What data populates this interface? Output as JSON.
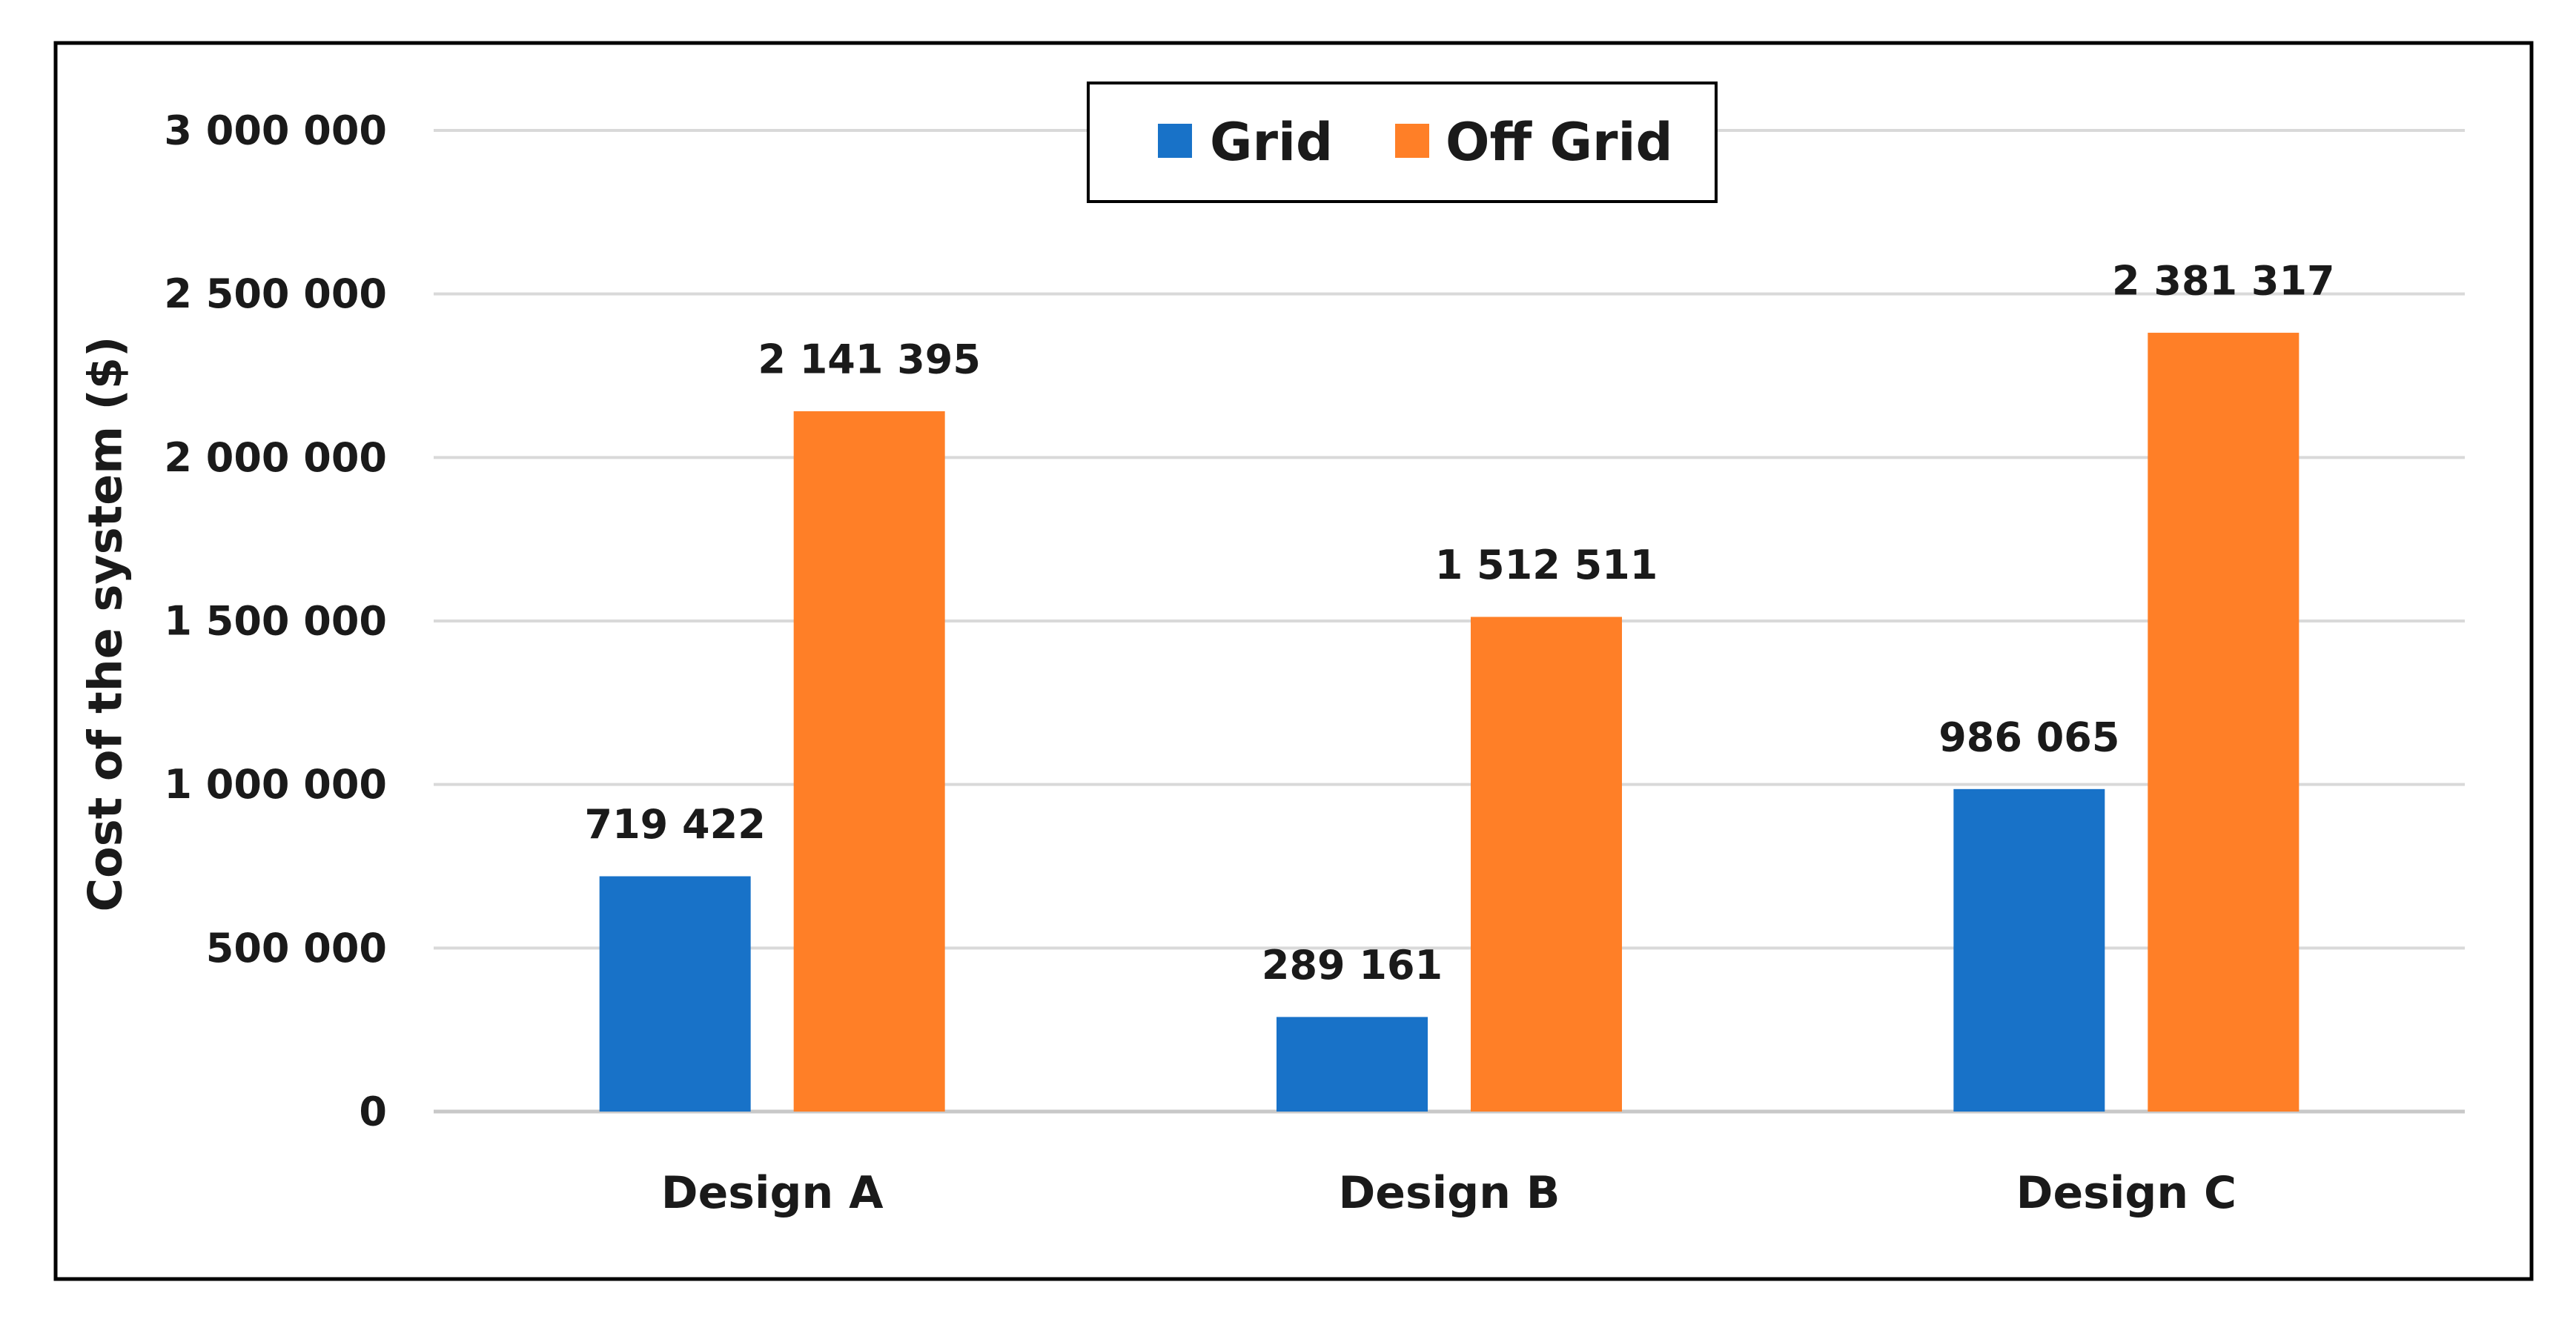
{
  "chart_data": {
    "type": "bar",
    "title": "",
    "xlabel": "",
    "ylabel": "Cost of the system ($)",
    "ylim": [
      0,
      3000000
    ],
    "yticks": [
      0,
      500000,
      1000000,
      1500000,
      2000000,
      2500000,
      3000000
    ],
    "ytick_labels": [
      "0",
      "500 000",
      "1 000 000",
      "1 500 000",
      "2 000 000",
      "2 500 000",
      "3 000 000"
    ],
    "categories": [
      "Design A",
      "Design B",
      "Design C"
    ],
    "grid": true,
    "legend_position": "top-center",
    "series": [
      {
        "name": "Grid",
        "color": "#1872C8",
        "values": [
          719422,
          289161,
          986065
        ],
        "labels": [
          "719 422",
          "289 161",
          "986 065"
        ]
      },
      {
        "name": "Off Grid",
        "color": "#FF7F27",
        "values": [
          2141395,
          1512511,
          2381317
        ],
        "labels": [
          "2 141 395",
          "1 512 511",
          "2 381 317"
        ]
      }
    ]
  }
}
